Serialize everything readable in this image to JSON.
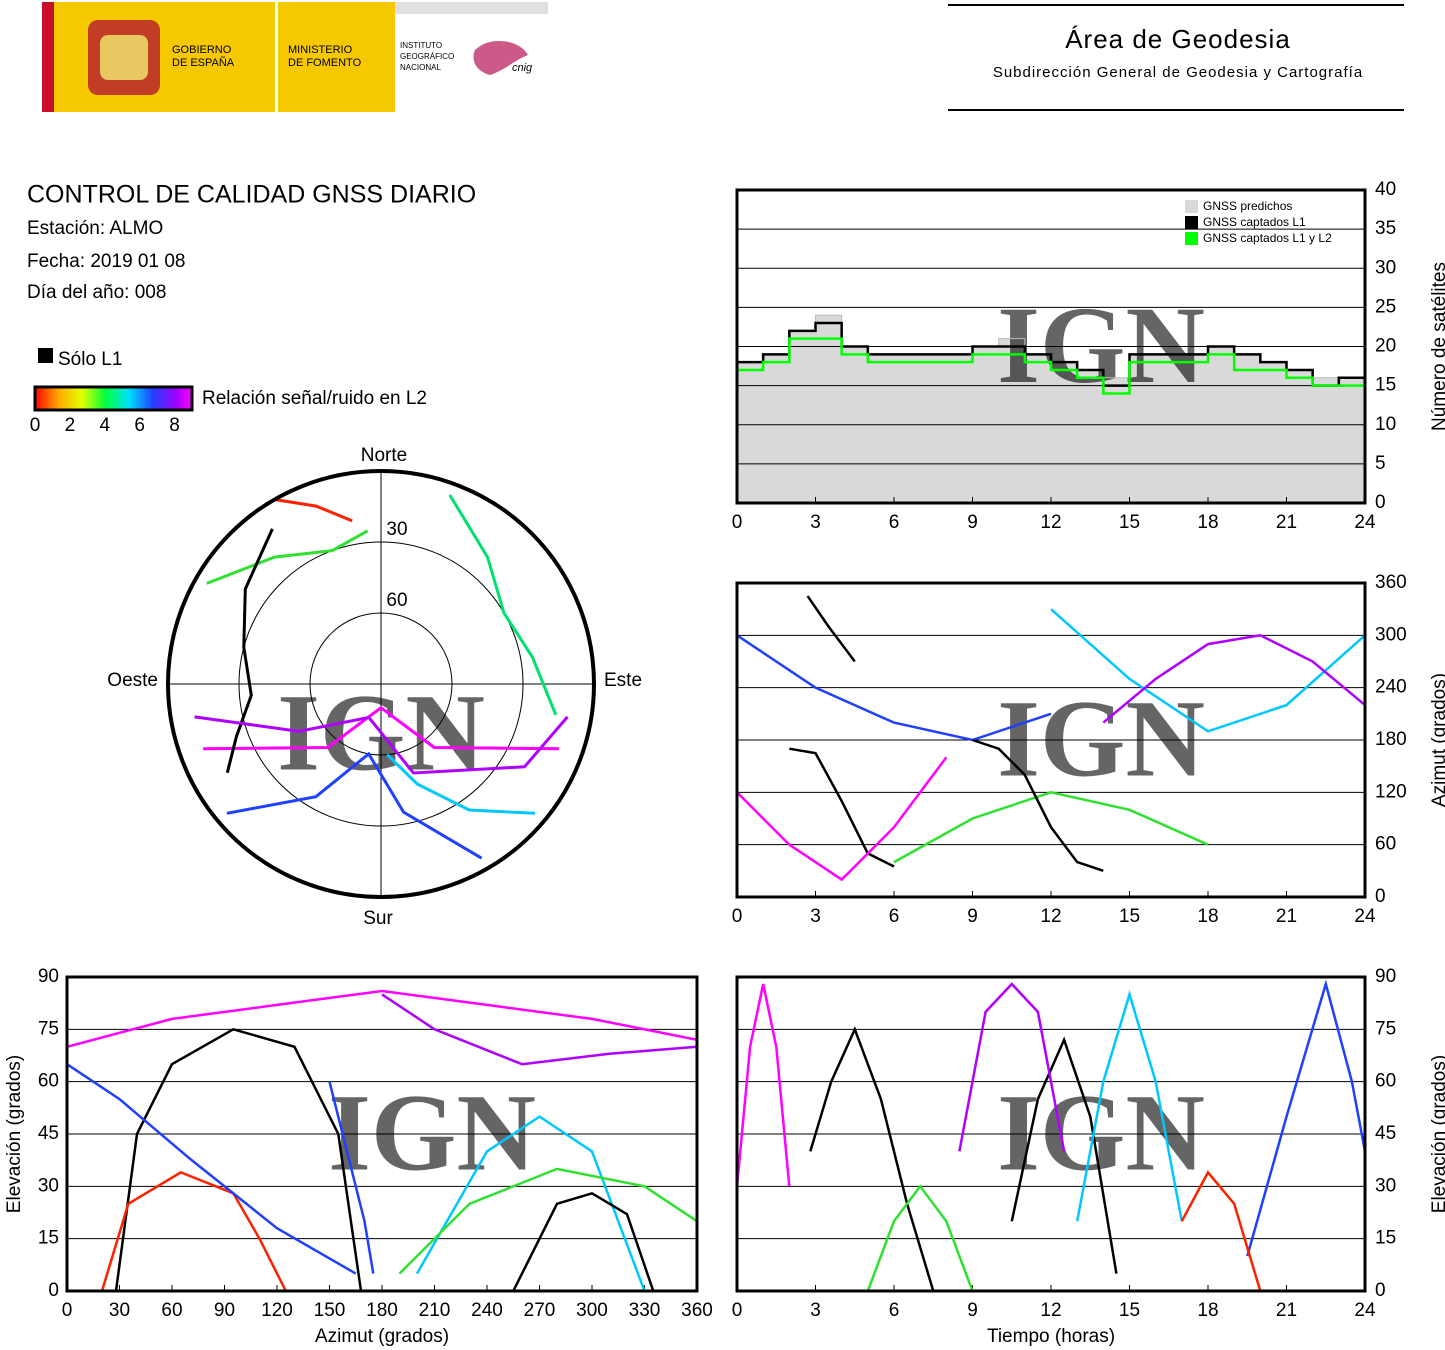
{
  "header": {
    "gobierno": [
      "GOBIERNO",
      "DE ESPAÑA"
    ],
    "ministerio": [
      "MINISTERIO",
      "DE FOMENTO"
    ],
    "instituto": [
      "INSTITUTO",
      "GEOGRÁFICO",
      "NACIONAL"
    ],
    "logo_text": "cnig",
    "area": "Área de Geodesia",
    "subdireccion": "Subdirección General de Geodesia y Cartografía"
  },
  "report": {
    "title": "CONTROL DE CALIDAD GNSS DIARIO",
    "station": "Estación: ALMO",
    "date": "Fecha: 2019 01 08",
    "doy": "Día del año: 008",
    "legend_l1": "Sólo L1",
    "colorbar_label": "Relación señal/ruido en L2",
    "colorbar_lim": [
      0,
      9
    ],
    "colorbar_ticks": [
      0,
      2,
      4,
      6,
      8
    ]
  },
  "chart_data": [
    {
      "type": "polar",
      "labels": {
        "north": "Norte",
        "south": "Sur",
        "west": "Oeste",
        "east": "Este"
      },
      "rticks": [
        30,
        60
      ],
      "watermark": "IGN",
      "series": [
        {
          "color": "#ff00ff",
          "az": [
            110,
            140,
            180,
            220,
            250
          ],
          "values": [
            10,
            55,
            80,
            55,
            10
          ]
        },
        {
          "color": "#2040ff",
          "az": [
            150,
            170,
            190,
            210,
            230
          ],
          "values": [
            5,
            35,
            60,
            35,
            5
          ]
        },
        {
          "color": "#00c8ff",
          "az": [
            130,
            145,
            160,
            175
          ],
          "values": [
            5,
            25,
            45,
            60
          ]
        },
        {
          "color": "#30e030",
          "az": [
            300,
            320,
            340,
            355
          ],
          "values": [
            5,
            20,
            30,
            25
          ]
        },
        {
          "color": "#000000",
          "az": [
            240,
            250,
            265,
            285,
            305,
            325
          ],
          "values": [
            15,
            25,
            35,
            30,
            20,
            10
          ]
        },
        {
          "color": "#b000ff",
          "az": [
            260,
            240,
            200,
            160,
            120,
            100
          ],
          "values": [
            10,
            50,
            75,
            50,
            20,
            10
          ]
        },
        {
          "color": "#00e070",
          "az": [
            20,
            40,
            60,
            80,
            100
          ],
          "values": [
            5,
            20,
            30,
            25,
            15
          ]
        },
        {
          "color": "#ff2000",
          "az": [
            330,
            340,
            350
          ],
          "values": [
            0,
            10,
            20
          ]
        }
      ]
    },
    {
      "type": "step",
      "ylabel": "Número de satélites",
      "yaxis_side": "right",
      "watermark": "IGN",
      "grid": true,
      "legend": "upper right",
      "xlim": [
        0,
        24
      ],
      "xticks": [
        0,
        3,
        6,
        9,
        12,
        15,
        18,
        21,
        24
      ],
      "ylim": [
        0,
        40
      ],
      "yticks": [
        0,
        5,
        10,
        15,
        20,
        25,
        30,
        35,
        40
      ],
      "x": [
        0,
        1,
        2,
        3,
        4,
        5,
        6,
        7,
        8,
        9,
        10,
        11,
        12,
        13,
        14,
        15,
        16,
        17,
        18,
        19,
        20,
        21,
        22,
        23,
        24
      ],
      "series": [
        {
          "name": "GNSS predichos",
          "color": "#d9d9d9",
          "fill": true,
          "values": [
            18,
            19,
            22,
            24,
            20,
            19,
            19,
            19,
            19,
            20,
            21,
            19,
            18,
            17,
            16,
            19,
            19,
            19,
            20,
            19,
            18,
            17,
            16,
            16,
            17
          ]
        },
        {
          "name": "GNSS captados L1",
          "color": "#000000",
          "values": [
            18,
            19,
            22,
            23,
            20,
            19,
            19,
            19,
            19,
            20,
            20,
            19,
            18,
            17,
            15,
            19,
            19,
            19,
            20,
            19,
            18,
            17,
            15,
            16,
            17
          ]
        },
        {
          "name": "GNSS captados L1 y L2",
          "color": "#00ff00",
          "values": [
            17,
            18,
            21,
            21,
            19,
            18,
            18,
            18,
            18,
            19,
            19,
            18,
            17,
            16,
            14,
            18,
            18,
            18,
            19,
            17,
            17,
            16,
            15,
            15,
            17
          ]
        }
      ]
    },
    {
      "type": "line",
      "ylabel": "Azimut (grados)",
      "yaxis_side": "right",
      "watermark": "IGN",
      "grid": true,
      "xlim": [
        0,
        24
      ],
      "xticks": [
        0,
        3,
        6,
        9,
        12,
        15,
        18,
        21,
        24
      ],
      "ylim": [
        0,
        360
      ],
      "yticks": [
        0,
        60,
        120,
        180,
        240,
        300,
        360
      ],
      "series": [
        {
          "color": "#000000",
          "x": [
            2.7,
            3.5,
            4.5
          ],
          "values": [
            345,
            310,
            270
          ]
        },
        {
          "color": "#000000",
          "x": [
            2,
            3,
            4,
            5,
            6
          ],
          "values": [
            170,
            165,
            110,
            50,
            35
          ]
        },
        {
          "color": "#ff00ff",
          "x": [
            0,
            2,
            4,
            6,
            8
          ],
          "values": [
            120,
            60,
            20,
            80,
            160
          ]
        },
        {
          "color": "#2040ff",
          "x": [
            0,
            3,
            6,
            9,
            12
          ],
          "values": [
            300,
            240,
            200,
            180,
            210
          ]
        },
        {
          "color": "#00c8ff",
          "x": [
            12,
            15,
            18,
            21,
            24
          ],
          "values": [
            330,
            250,
            190,
            220,
            300
          ]
        },
        {
          "color": "#30e030",
          "x": [
            6,
            9,
            12,
            15,
            18
          ],
          "values": [
            40,
            90,
            120,
            100,
            60
          ]
        },
        {
          "color": "#b000ff",
          "x": [
            14,
            16,
            18,
            20,
            22,
            24
          ],
          "values": [
            200,
            250,
            290,
            300,
            270,
            220
          ]
        },
        {
          "color": "#000000",
          "x": [
            9,
            10,
            11,
            12,
            13,
            14
          ],
          "values": [
            180,
            170,
            140,
            80,
            40,
            30
          ]
        }
      ]
    },
    {
      "type": "line",
      "xlabel": "Azimut (grados)",
      "ylabel": "Elevación (grados)",
      "yaxis_side": "left",
      "watermark": "IGN",
      "grid": true,
      "xlim": [
        0,
        360
      ],
      "xticks": [
        0,
        30,
        60,
        90,
        120,
        150,
        180,
        210,
        240,
        270,
        300,
        330,
        360
      ],
      "ylim": [
        0,
        90
      ],
      "yticks": [
        0,
        15,
        30,
        45,
        60,
        75,
        90
      ],
      "series": [
        {
          "color": "#000000",
          "x": [
            28,
            40,
            60,
            95,
            130,
            155,
            168
          ],
          "values": [
            0,
            45,
            65,
            75,
            70,
            45,
            0
          ]
        },
        {
          "color": "#ff2000",
          "x": [
            20,
            35,
            65,
            95,
            110,
            125
          ],
          "values": [
            0,
            25,
            34,
            28,
            15,
            0
          ]
        },
        {
          "color": "#ff00ff",
          "x": [
            0,
            60,
            120,
            180,
            240,
            300,
            360
          ],
          "values": [
            70,
            78,
            82,
            86,
            82,
            78,
            72
          ]
        },
        {
          "color": "#2040ff",
          "x": [
            0,
            30,
            70,
            120,
            165
          ],
          "values": [
            65,
            55,
            38,
            18,
            5
          ]
        },
        {
          "color": "#00c8ff",
          "x": [
            200,
            240,
            270,
            300,
            330
          ],
          "values": [
            5,
            40,
            50,
            40,
            0
          ]
        },
        {
          "color": "#000000",
          "x": [
            255,
            280,
            300,
            320,
            335
          ],
          "values": [
            0,
            25,
            28,
            22,
            0
          ]
        },
        {
          "color": "#30e030",
          "x": [
            190,
            230,
            280,
            330,
            360
          ],
          "values": [
            5,
            25,
            35,
            30,
            20
          ]
        },
        {
          "color": "#b000ff",
          "x": [
            180,
            210,
            260,
            310,
            360
          ],
          "values": [
            85,
            75,
            65,
            68,
            70
          ]
        },
        {
          "color": "#2040ff",
          "x": [
            150,
            160,
            170,
            175
          ],
          "values": [
            60,
            40,
            20,
            5
          ]
        }
      ]
    },
    {
      "type": "line",
      "xlabel": "Tiempo (horas)",
      "ylabel": "Elevación (grados)",
      "yaxis_side": "right",
      "watermark": "IGN",
      "grid": true,
      "xlim": [
        0,
        24
      ],
      "xticks": [
        0,
        3,
        6,
        9,
        12,
        15,
        18,
        21,
        24
      ],
      "ylim": [
        0,
        90
      ],
      "yticks": [
        0,
        15,
        30,
        45,
        60,
        75,
        90
      ],
      "series": [
        {
          "color": "#000000",
          "x": [
            2.8,
            3.6,
            4.5,
            5.5,
            6.5,
            7.5
          ],
          "values": [
            40,
            60,
            75,
            55,
            25,
            0
          ]
        },
        {
          "color": "#000000",
          "x": [
            10.5,
            11.5,
            12.5,
            13.5,
            14.5
          ],
          "values": [
            20,
            55,
            72,
            50,
            5
          ]
        },
        {
          "color": "#ff00ff",
          "x": [
            0,
            0.5,
            1,
            1.5,
            2
          ],
          "values": [
            30,
            70,
            88,
            70,
            30
          ]
        },
        {
          "color": "#2040ff",
          "x": [
            19.5,
            21,
            22.5,
            23.5,
            24
          ],
          "values": [
            10,
            50,
            88,
            60,
            40
          ]
        },
        {
          "color": "#00c8ff",
          "x": [
            13,
            14,
            15,
            16,
            17
          ],
          "values": [
            20,
            60,
            85,
            60,
            20
          ]
        },
        {
          "color": "#30e030",
          "x": [
            5,
            6,
            7,
            8,
            9
          ],
          "values": [
            0,
            20,
            30,
            20,
            0
          ]
        },
        {
          "color": "#b000ff",
          "x": [
            8.5,
            9.5,
            10.5,
            11.5,
            12.5
          ],
          "values": [
            40,
            80,
            88,
            80,
            40
          ]
        },
        {
          "color": "#ff2000",
          "x": [
            17,
            18,
            19,
            20
          ],
          "values": [
            20,
            34,
            25,
            0
          ]
        }
      ]
    }
  ]
}
